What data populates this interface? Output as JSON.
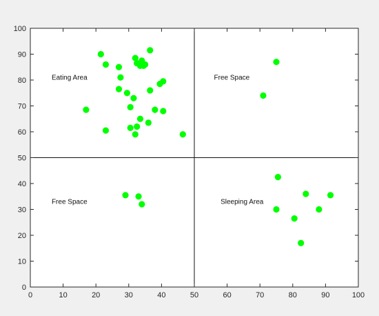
{
  "chart_data": {
    "type": "scatter",
    "xlim": [
      0,
      100
    ],
    "ylim": [
      0,
      100
    ],
    "xticks": [
      0,
      10,
      20,
      30,
      40,
      50,
      60,
      70,
      80,
      90,
      100
    ],
    "yticks": [
      0,
      10,
      20,
      30,
      40,
      50,
      60,
      70,
      80,
      90,
      100
    ],
    "grid": false,
    "marker_color": "#00ff00",
    "divider_lines": {
      "x": 50,
      "y": 50
    },
    "annotations": [
      {
        "text": "Eating Area",
        "x": 6.5,
        "y": 81
      },
      {
        "text": "Free Space",
        "x": 56,
        "y": 81
      },
      {
        "text": "Free Space",
        "x": 6.5,
        "y": 33
      },
      {
        "text": "Sleeping Area",
        "x": 58,
        "y": 33
      }
    ],
    "series": [
      {
        "points": [
          {
            "x": 21.5,
            "y": 90
          },
          {
            "x": 23,
            "y": 86
          },
          {
            "x": 27,
            "y": 85
          },
          {
            "x": 27.5,
            "y": 81
          },
          {
            "x": 27,
            "y": 76.5
          },
          {
            "x": 29.5,
            "y": 75
          },
          {
            "x": 30.5,
            "y": 69.5
          },
          {
            "x": 31.5,
            "y": 73
          },
          {
            "x": 32,
            "y": 88.5
          },
          {
            "x": 32.5,
            "y": 86.5
          },
          {
            "x": 33.5,
            "y": 85.5
          },
          {
            "x": 34,
            "y": 87.5
          },
          {
            "x": 34.5,
            "y": 85.5
          },
          {
            "x": 35,
            "y": 86
          },
          {
            "x": 36.5,
            "y": 91.5
          },
          {
            "x": 36.5,
            "y": 76
          },
          {
            "x": 39.5,
            "y": 78.5
          },
          {
            "x": 40.5,
            "y": 79.5
          },
          {
            "x": 38,
            "y": 68.5
          },
          {
            "x": 40.5,
            "y": 68
          },
          {
            "x": 17,
            "y": 68.5
          },
          {
            "x": 23,
            "y": 60.5
          },
          {
            "x": 30.5,
            "y": 61.5
          },
          {
            "x": 32.5,
            "y": 62
          },
          {
            "x": 33.5,
            "y": 65
          },
          {
            "x": 36,
            "y": 63.5
          },
          {
            "x": 32,
            "y": 59
          },
          {
            "x": 46.5,
            "y": 59
          },
          {
            "x": 75,
            "y": 87
          },
          {
            "x": 71,
            "y": 74
          },
          {
            "x": 29,
            "y": 35.5
          },
          {
            "x": 33,
            "y": 35
          },
          {
            "x": 34,
            "y": 32
          },
          {
            "x": 75.5,
            "y": 42.5
          },
          {
            "x": 75,
            "y": 30
          },
          {
            "x": 84,
            "y": 36
          },
          {
            "x": 91.5,
            "y": 35.5
          },
          {
            "x": 80.5,
            "y": 26.5
          },
          {
            "x": 88,
            "y": 30
          },
          {
            "x": 82.5,
            "y": 17
          }
        ]
      }
    ]
  }
}
